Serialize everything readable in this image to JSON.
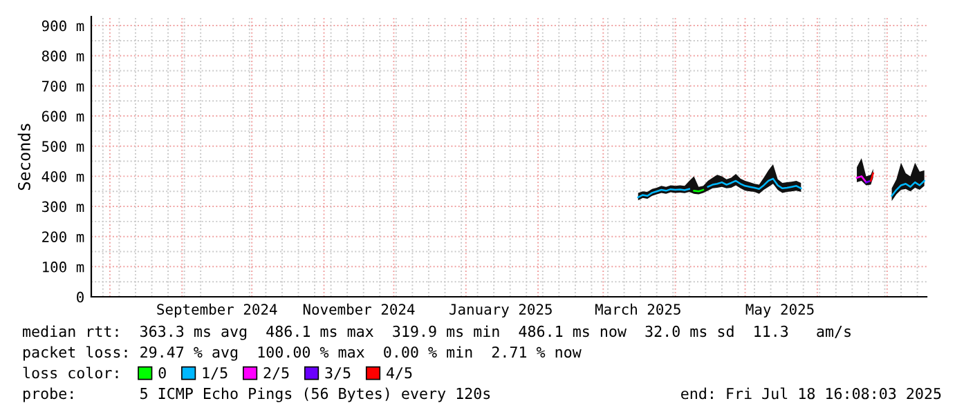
{
  "chart_data": {
    "type": "line",
    "ylabel": "Seconds",
    "legend_title": "loss color:",
    "legend": "bottom",
    "grid": true,
    "marker": "none",
    "line_style": "solid",
    "xlim": [
      "2024-07-24",
      "2025-07-18"
    ],
    "xticks": [
      {
        "value": "2024-09-16",
        "label": "September 2024"
      },
      {
        "value": "2024-11-16",
        "label": "November 2024"
      },
      {
        "value": "2025-01-16",
        "label": "January 2025"
      },
      {
        "value": "2025-03-16",
        "label": "March 2025"
      },
      {
        "value": "2025-05-16",
        "label": "May 2025"
      }
    ],
    "ylim": [
      0,
      930
    ],
    "yticks": [
      0,
      {
        "value": 100,
        "label": "100 m"
      },
      {
        "value": 200,
        "label": "200 m"
      },
      {
        "value": 300,
        "label": "300 m"
      },
      {
        "value": 400,
        "label": "400 m"
      },
      {
        "value": 500,
        "label": "500 m"
      },
      {
        "value": 600,
        "label": "600 m"
      },
      {
        "value": 700,
        "label": "700 m"
      },
      {
        "value": 800,
        "label": "800 m"
      },
      {
        "value": 900,
        "label": "900 m"
      }
    ],
    "series": [
      {
        "name": "0",
        "color": "#00ff00",
        "x": [
          "2025-04-09",
          "2025-04-11",
          "2025-04-13"
        ],
        "values": [
          352,
          350,
          355
        ]
      },
      {
        "name": "1/5",
        "color": "#00b8ff",
        "x": [
          "2025-03-16",
          "2025-03-18",
          "2025-03-20",
          "2025-03-22",
          "2025-03-24",
          "2025-03-26",
          "2025-03-28",
          "2025-03-30",
          "2025-04-01",
          "2025-04-03",
          "2025-04-05",
          "2025-04-07",
          "2025-04-09",
          "2025-04-11",
          "2025-04-13",
          "2025-04-15",
          "2025-04-17",
          "2025-04-19",
          "2025-04-21",
          "2025-04-23",
          "2025-04-25",
          "2025-04-27",
          "2025-04-29",
          "2025-05-01",
          "2025-05-03",
          "2025-05-05",
          "2025-05-07",
          "2025-05-09",
          "2025-05-11",
          "2025-05-13",
          "2025-05-15",
          "2025-05-17",
          "2025-05-19",
          "2025-05-21",
          "2025-05-23",
          "2025-05-25",
          "2025-06-05",
          "2025-06-18",
          "2025-06-20",
          "2025-06-22",
          "2025-06-24",
          "2025-06-25",
          "2025-06-29",
          "2025-07-03",
          "2025-07-05",
          "2025-07-07",
          "2025-07-09",
          "2025-07-11",
          "2025-07-13",
          "2025-07-15",
          "2025-07-17"
        ],
        "values": [
          330,
          338,
          335,
          345,
          350,
          355,
          352,
          357,
          355,
          356,
          354,
          358,
          null,
          null,
          null,
          365,
          372,
          375,
          380,
          372,
          378,
          385,
          375,
          368,
          365,
          362,
          358,
          370,
          385,
          392,
          370,
          360,
          362,
          365,
          368,
          360,
          null,
          null,
          null,
          null,
          null,
          null,
          null,
          335,
          355,
          370,
          375,
          365,
          380,
          370,
          385
        ],
        "lower": [
          320,
          328,
          325,
          335,
          340,
          345,
          342,
          347,
          345,
          346,
          344,
          348,
          342,
          340,
          345,
          352,
          360,
          362,
          365,
          360,
          362,
          370,
          360,
          352,
          350,
          348,
          342,
          355,
          365,
          375,
          355,
          345,
          348,
          350,
          352,
          348,
          null,
          380,
          385,
          370,
          372,
          395,
          null,
          318,
          340,
          355,
          358,
          350,
          362,
          355,
          368
        ],
        "upper": [
          345,
          350,
          348,
          358,
          362,
          368,
          365,
          370,
          368,
          370,
          368,
          385,
          400,
          365,
          368,
          385,
          395,
          405,
          400,
          390,
          395,
          408,
          392,
          385,
          380,
          375,
          372,
          395,
          420,
          440,
          390,
          378,
          380,
          382,
          385,
          378,
          null,
          430,
          460,
          400,
          405,
          425,
          null,
          360,
          390,
          445,
          410,
          400,
          445,
          415,
          420
        ]
      },
      {
        "name": "2/5",
        "color": "#ff00ff",
        "x": [
          "2025-06-18",
          "2025-06-20",
          "2025-06-22"
        ],
        "values": [
          395,
          400,
          380
        ]
      },
      {
        "name": "3/5",
        "color": "#6a00ff",
        "x": [
          "2025-06-22",
          "2025-06-24"
        ],
        "values": [
          380,
          385
        ]
      },
      {
        "name": "4/5",
        "color": "#ff0000",
        "x": [
          "2025-06-24",
          "2025-06-25"
        ],
        "values": [
          385,
          410
        ]
      }
    ],
    "annotations": [
      "median rtt:  363.3 ms avg  486.1 ms max  319.9 ms min  486.1 ms now  32.0 ms sd  11.3   am/s",
      "packet loss: 29.47 % avg  100.00 % max  0.00 % min  2.71 % now",
      "probe:       5 ICMP Echo Pings (56 Bytes) every 120s",
      "end: Fri Jul 18 16:08:03 2025"
    ]
  }
}
